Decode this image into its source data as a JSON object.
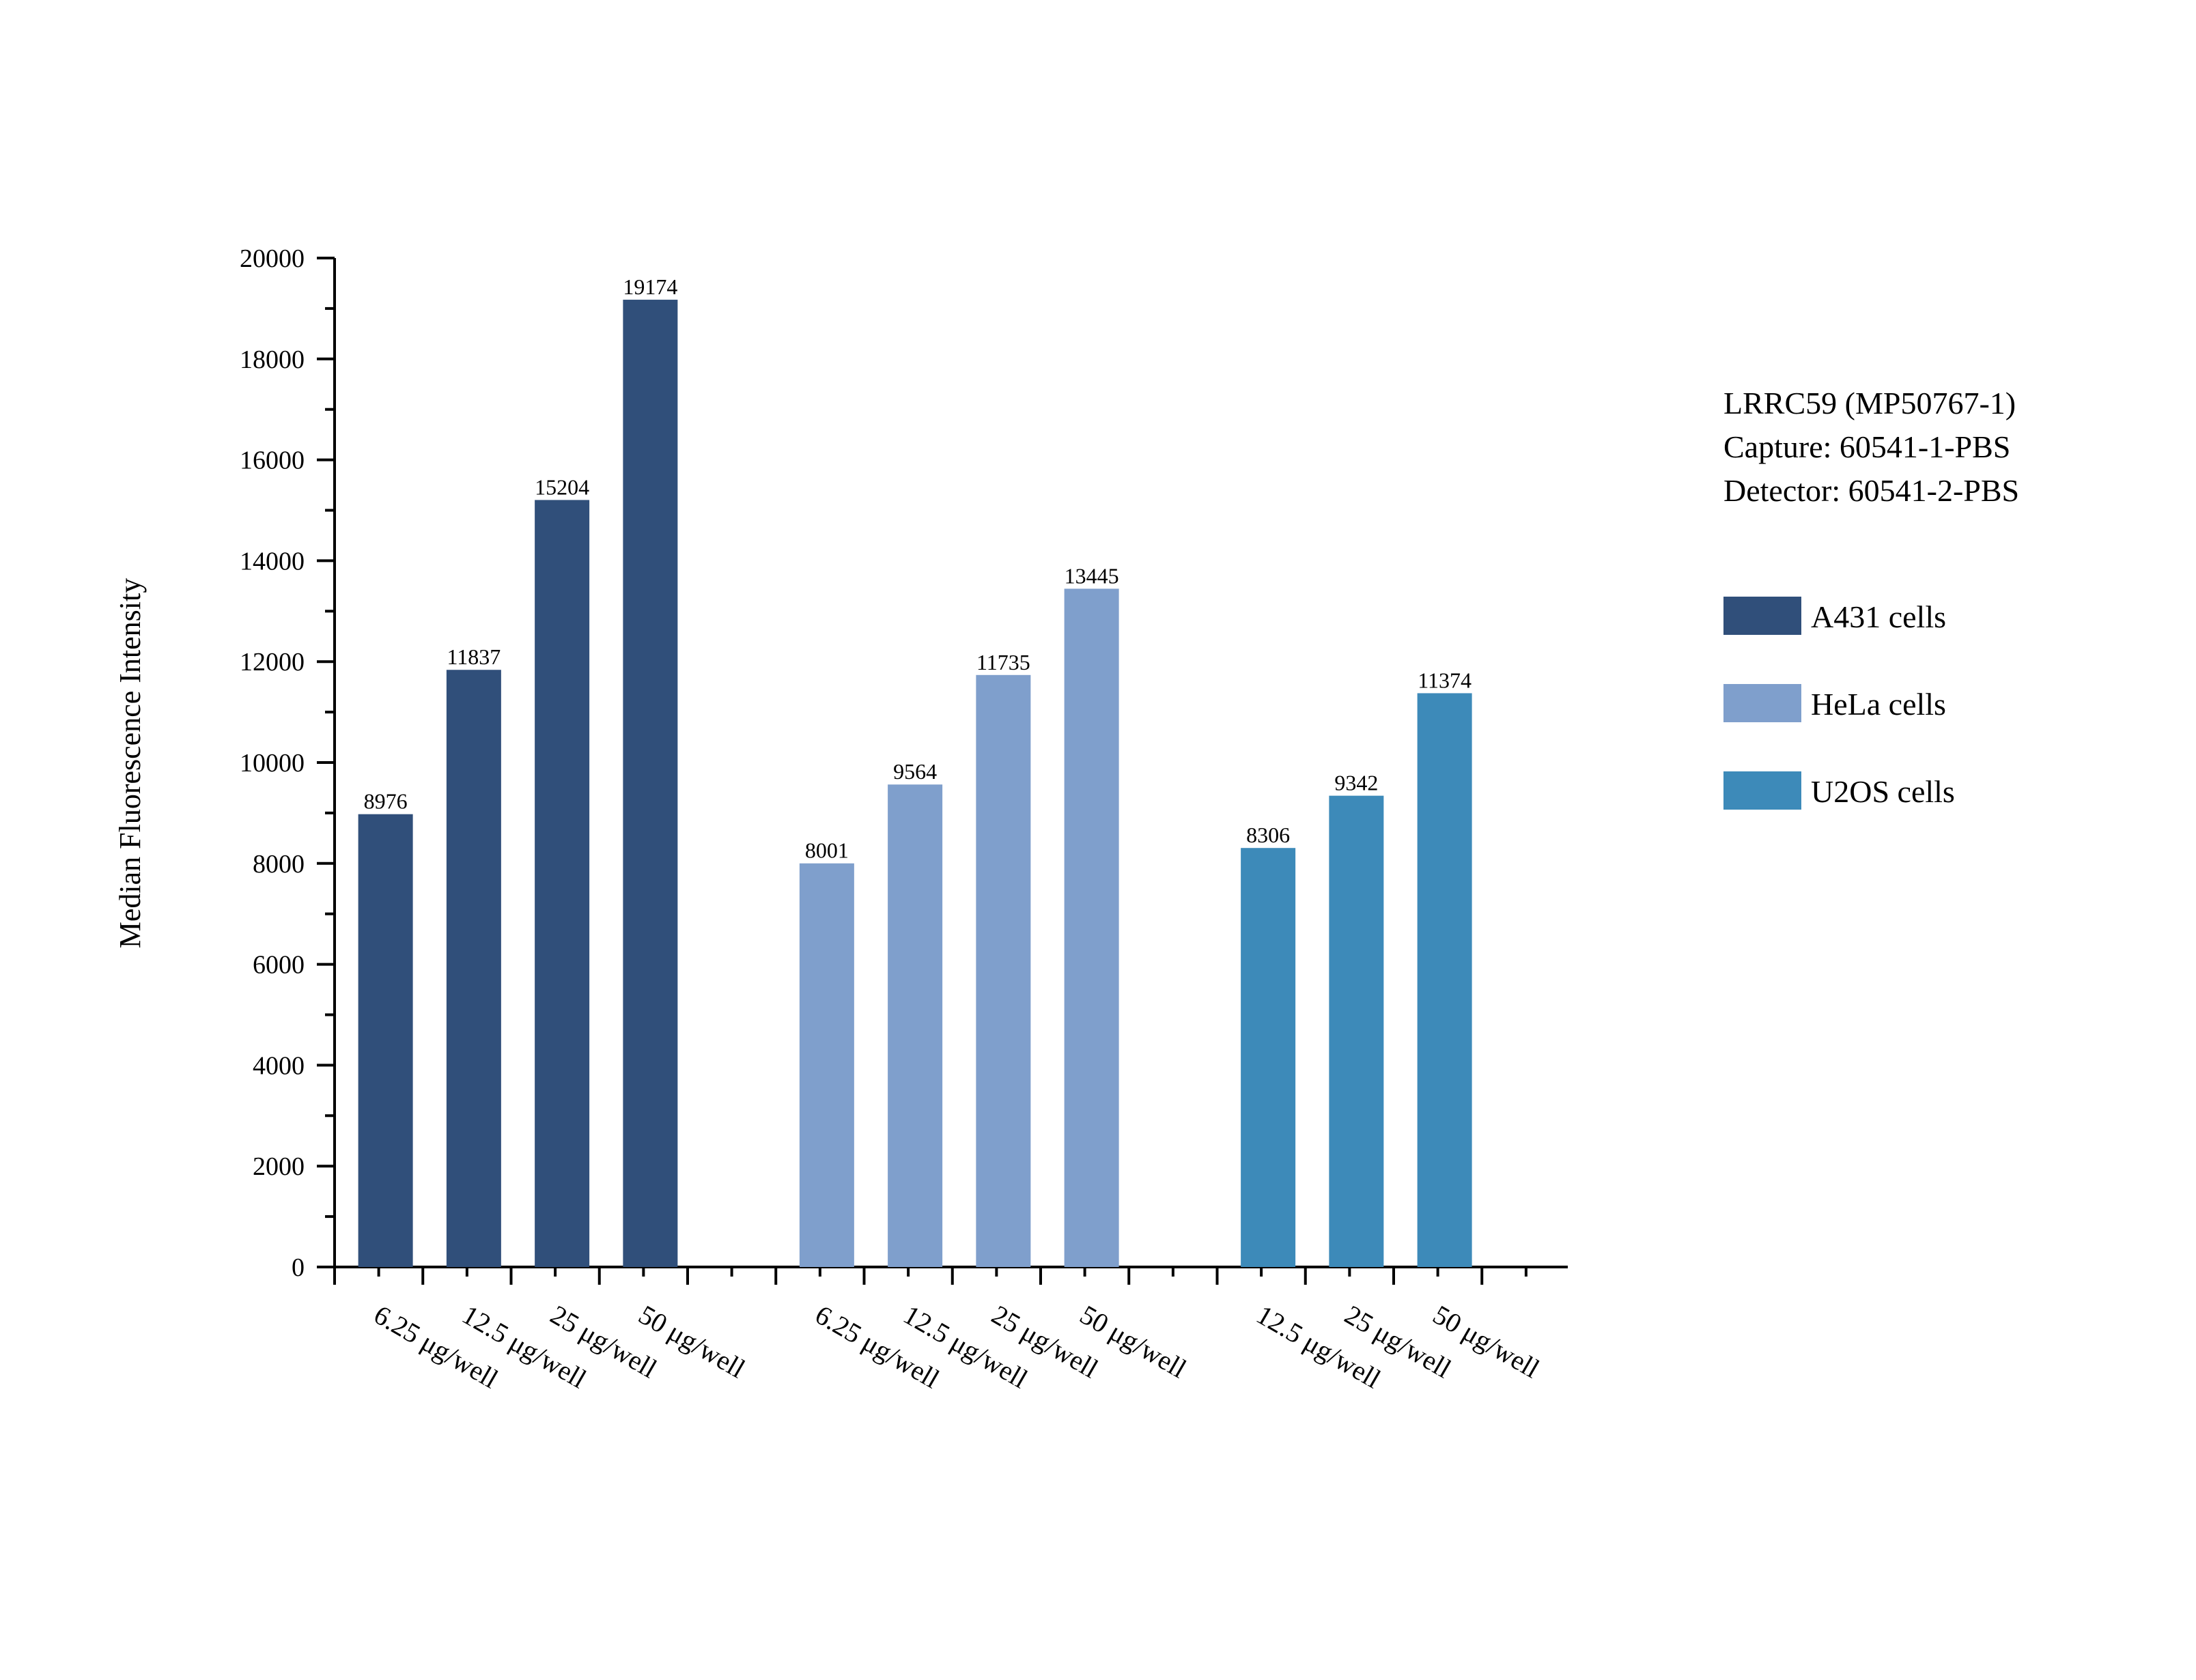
{
  "chart_data": {
    "type": "bar",
    "title": "",
    "xlabel": "",
    "ylabel": "Median Fluorescence Intensity",
    "ylim": [
      0,
      20000
    ],
    "yticks": [
      0,
      2000,
      4000,
      6000,
      8000,
      10000,
      12000,
      14000,
      16000,
      18000,
      20000
    ],
    "info": [
      "LRRC59 (MP50767-1)",
      "Capture: 60541-1-PBS",
      "Detector: 60541-2-PBS"
    ],
    "legend_position": "right",
    "series": [
      {
        "name": "A431 cells",
        "color": "#304f7a",
        "categories": [
          "6.25 μg/well",
          "12.5 μg/well",
          "25 μg/well",
          "50 μg/well"
        ],
        "values": [
          8976,
          11837,
          15204,
          19174
        ]
      },
      {
        "name": "HeLa cells",
        "color": "#7f9fcc",
        "categories": [
          "6.25 μg/well",
          "12.5 μg/well",
          "25 μg/well",
          "50 μg/well"
        ],
        "values": [
          8001,
          9564,
          11735,
          13445
        ]
      },
      {
        "name": "U2OS cells",
        "color": "#3d8ab9",
        "categories": [
          "12.5 μg/well",
          "25 μg/well",
          "50 μg/well"
        ],
        "values": [
          8306,
          9342,
          11374
        ]
      }
    ]
  }
}
